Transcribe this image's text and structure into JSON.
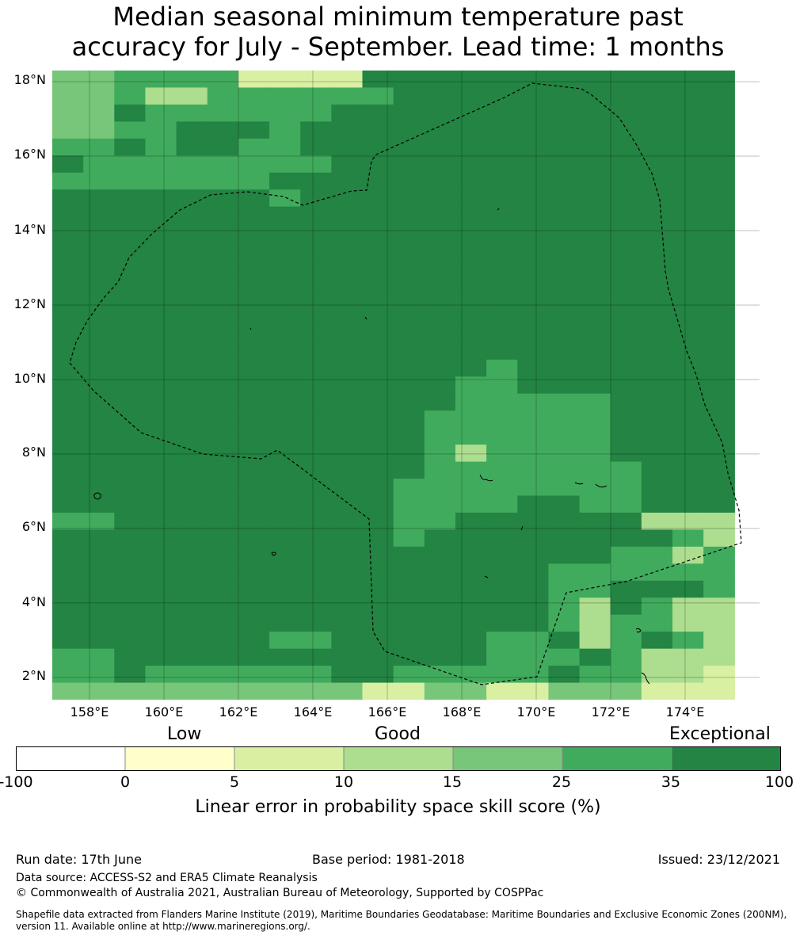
{
  "title_line1": "Median seasonal minimum temperature past",
  "title_line2": "accuracy for July - September. Lead time: 1 months",
  "map": {
    "lon_range": [
      157,
      176
    ],
    "lat_range": [
      1.4,
      18.3
    ],
    "cell_size_deg": 0.833,
    "lat_labels": [
      "18°N",
      "16°N",
      "14°N",
      "12°N",
      "10°N",
      "8°N",
      "6°N",
      "4°N",
      "2°N"
    ],
    "lon_labels": [
      "158°E",
      "160°E",
      "162°E",
      "164°E",
      "166°E",
      "168°E",
      "170°E",
      "172°E",
      "174°E"
    ],
    "grid_rows": [
      "5533331111444444444444",
      "5532233333344444444444",
      "5543333334444444444444",
      "5533444344444444444444",
      "3343443344444444444444",
      "4333333334444444444444",
      "3333333444444444444444",
      "4444444344444444444444",
      "4444444444444444444444",
      "4444444444444444444444",
      "4444444444444444444444",
      "4444444444444444444444",
      "4444444444444444444444",
      "4444444444444444444444",
      "4444444444444444444444",
      "4444444444444444444444",
      "4444444444444444444444",
      "4444444444444434444444",
      "4444444444444334444444",
      "4444444444444333334444",
      "4444444444443333334444",
      "4444444444443333334444",
      "4444444444443233334444",
      "4444444444443333333444",
      "4444444444433333333444",
      "4444444444433334433444",
      "3344444444433444444222",
      "4444444444434444444432",
      "4444444444444444443323",
      "4444444444444444333333",
      "4444444444444444334443",
      "4444444444444444324322",
      "4444444444444444323322",
      "4444444334444433423432",
      "3344444444444433343222",
      "3343333334433333433221",
      "5555555555115511555111"
    ]
  },
  "colorbar": {
    "categories": [
      "Low",
      "Good",
      "Exceptional"
    ],
    "ticks": [
      "-100",
      "0",
      "5",
      "10",
      "15",
      "25",
      "35",
      "100"
    ],
    "colors": [
      "#ffffff",
      "#ffffcc",
      "#d9f0a3",
      "#addd8e",
      "#78c679",
      "#41ab5d",
      "#238443"
    ],
    "label": "Linear error in probability space skill score (%)"
  },
  "footer": {
    "run_date": "Run date: 17th June",
    "base_period": "Base period: 1981-2018",
    "issued": "Issued: 23/12/2021",
    "data_source": "Data source: ACCESS-S2 and ERA5 Climate Reanalysis",
    "copyright": "© Commonwealth of Australia 2021, Australian Bureau of Meteorology, Supported by COSPPac",
    "shapefile_line1": "Shapefile data extracted from Flanders Marine Institute (2019), Maritime Boundaries Geodatabase: Maritime Boundaries and Exclusive Economic Zones (200NM),",
    "shapefile_line2": "version 11. Available online at http://www.marineregions.org/."
  }
}
